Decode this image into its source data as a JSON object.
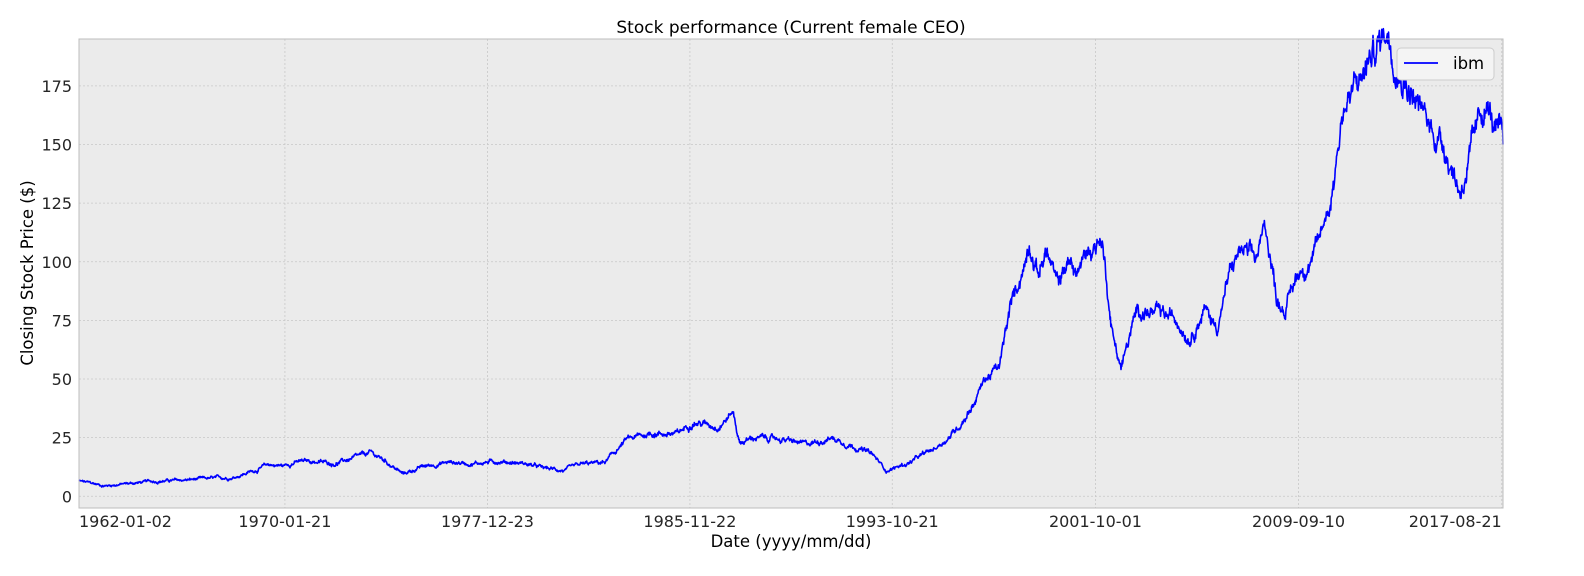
{
  "chart_data": {
    "type": "line",
    "title": "Stock performance (Current female CEO)",
    "xlabel": "Date (yyyy/mm/dd)",
    "ylabel": "Closing Stock Price ($)",
    "xlim": [
      "1962-01-02",
      "2017-09-08"
    ],
    "ylim": [
      -5,
      195
    ],
    "x_ticks": [
      "1962-01-02",
      "1970-01-21",
      "1977-12-23",
      "1985-11-22",
      "1993-10-21",
      "2001-10-01",
      "2009-09-10",
      "2017-08-21"
    ],
    "y_ticks": [
      0,
      25,
      50,
      75,
      100,
      125,
      150,
      175
    ],
    "grid": true,
    "legend_position": "top-right",
    "series": [
      {
        "name": "ibm",
        "color": "#0000ff",
        "x": [
          "1962-01-02",
          "1962-07-01",
          "1963-01-01",
          "1964-01-01",
          "1965-01-01",
          "1966-01-01",
          "1967-01-01",
          "1968-01-01",
          "1969-01-01",
          "1969-06-01",
          "1970-01-01",
          "1970-06-01",
          "1971-01-01",
          "1972-01-01",
          "1973-01-01",
          "1973-06-01",
          "1974-01-01",
          "1974-09-01",
          "1975-06-01",
          "1976-06-01",
          "1977-06-01",
          "1978-06-01",
          "1979-06-01",
          "1980-03-01",
          "1981-01-01",
          "1981-09-01",
          "1982-08-01",
          "1983-06-01",
          "1984-06-01",
          "1985-06-01",
          "1986-01-01",
          "1986-06-01",
          "1987-01-01",
          "1987-08-01",
          "1987-11-01",
          "1988-06-01",
          "1989-06-01",
          "1990-06-01",
          "1991-06-01",
          "1992-06-01",
          "1993-01-01",
          "1993-08-01",
          "1994-06-01",
          "1995-06-01",
          "1996-01-01",
          "1996-06-01",
          "1997-01-01",
          "1997-06-01",
          "1998-01-01",
          "1998-06-01",
          "1999-01-01",
          "1999-03-01",
          "1999-07-01",
          "1999-11-01",
          "2000-04-01",
          "2000-09-01",
          "2001-01-01",
          "2001-07-01",
          "2002-01-01",
          "2002-06-01",
          "2002-10-01",
          "2003-06-01",
          "2004-01-01",
          "2005-01-01",
          "2005-06-01",
          "2006-01-01",
          "2006-07-01",
          "2007-01-01",
          "2007-06-01",
          "2008-01-01",
          "2008-06-01",
          "2008-11-01",
          "2009-03-01",
          "2009-09-01",
          "2010-06-01",
          "2011-01-01",
          "2011-06-01",
          "2012-01-01",
          "2012-06-01",
          "2013-03-01",
          "2013-06-01",
          "2014-01-01",
          "2014-06-01",
          "2015-01-01",
          "2015-06-01",
          "2016-01-01",
          "2016-06-01",
          "2017-01-01",
          "2017-06-01",
          "2017-09-08"
        ],
        "y": [
          6.5,
          5.5,
          4.5,
          5.5,
          6.5,
          6.8,
          7.5,
          8.0,
          11.5,
          13.5,
          13.0,
          14.5,
          15.0,
          14.0,
          17.0,
          18.5,
          15.0,
          9.5,
          12.5,
          14.5,
          14.0,
          15.0,
          14.0,
          12.0,
          11.0,
          13.5,
          14.5,
          24.0,
          27.0,
          26.5,
          32.0,
          31.0,
          30.0,
          36.0,
          23.0,
          25.0,
          24.5,
          22.0,
          25.0,
          21.0,
          18.0,
          11.0,
          14.0,
          20.0,
          25.0,
          30.0,
          40.0,
          50.0,
          55.0,
          80.0,
          100.0,
          110.0,
          95.0,
          105.0,
          90.0,
          100.0,
          95.0,
          105.0,
          110.0,
          70.0,
          55.0,
          80.0,
          78.0,
          75.0,
          68.0,
          80.0,
          72.0,
          95.0,
          105.0,
          100.0,
          115.0,
          85.0,
          80.0,
          95.0,
          105.0,
          130.0,
          165.0,
          175.0,
          185.0,
          200.0,
          190.0,
          175.0,
          165.0,
          155.0,
          150.0,
          130.0,
          145.0,
          168.0,
          155.0,
          150.0
        ]
      }
    ]
  }
}
